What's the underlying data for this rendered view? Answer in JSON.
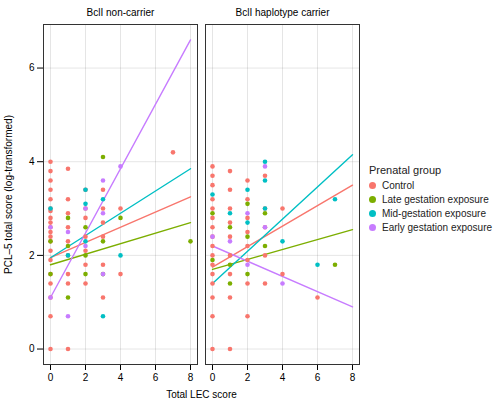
{
  "chart_data": {
    "type": "scatter",
    "x_label": "Total LEC score",
    "y_label": "PCL–5 total score (log-transformed)",
    "legend_title": "Prenatal group",
    "legend": "right",
    "grid": true,
    "xlim": [
      -0.4,
      8.4
    ],
    "ylim": [
      -0.33,
      6.93
    ],
    "xticks": [
      0,
      2,
      4,
      6,
      8
    ],
    "yticks": [
      0,
      2,
      4,
      6
    ],
    "facets": [
      {
        "title": "BclI non-carrier",
        "series": [
          {
            "name": "Control",
            "color": "#F8766D",
            "x": [
              0,
              0,
              0,
              0,
              0,
              0,
              0,
              0,
              0,
              0,
              0,
              0,
              0,
              0,
              0,
              0,
              0,
              0,
              0,
              0,
              1,
              1,
              1,
              1,
              1,
              1,
              1,
              1,
              1,
              2,
              2,
              2,
              2,
              2,
              2,
              2,
              3,
              3,
              3,
              3,
              3,
              3,
              4,
              4,
              7
            ],
            "values": [
              4.0,
              3.8,
              3.6,
              3.4,
              3.2,
              3.0,
              2.95,
              2.8,
              2.7,
              2.6,
              2.5,
              2.4,
              2.3,
              2.1,
              1.9,
              1.6,
              1.4,
              1.1,
              0.7,
              0.0,
              3.85,
              3.2,
              2.9,
              2.6,
              2.3,
              2.0,
              1.6,
              1.4,
              0.0,
              3.4,
              3.0,
              2.8,
              2.4,
              2.1,
              1.8,
              1.4,
              3.4,
              3.0,
              2.7,
              2.4,
              1.8,
              1.1,
              3.0,
              1.6,
              4.2
            ],
            "fit": {
              "x": [
                0,
                8
              ],
              "values": [
                1.95,
                3.25
              ]
            }
          },
          {
            "name": "Late gestation exposure",
            "color": "#7CAE00",
            "x": [
              0,
              0,
              1,
              1,
              1,
              2,
              2,
              2,
              3,
              3,
              3,
              4,
              8
            ],
            "values": [
              2.3,
              1.6,
              2.8,
              2.2,
              1.1,
              2.6,
              2.0,
              1.6,
              4.1,
              2.3,
              1.6,
              2.8,
              2.3
            ],
            "fit": {
              "x": [
                0,
                8
              ],
              "values": [
                1.8,
                2.7
              ]
            }
          },
          {
            "name": "Mid-gestation exposure",
            "color": "#00BFC4",
            "x": [
              0,
              1,
              2,
              2,
              2,
              3,
              3,
              4
            ],
            "values": [
              3.0,
              2.0,
              3.4,
              3.1,
              2.3,
              3.2,
              0.7,
              2.0
            ],
            "fit": {
              "x": [
                0,
                8
              ],
              "values": [
                1.95,
                3.85
              ]
            }
          },
          {
            "name": "Early gestation exposure",
            "color": "#C77CFF",
            "x": [
              0,
              0,
              1,
              1,
              2,
              2,
              3,
              3,
              3,
              4
            ],
            "values": [
              2.6,
              1.1,
              2.5,
              0.7,
              3.0,
              2.2,
              3.6,
              2.9,
              1.6,
              3.9
            ],
            "fit": {
              "x": [
                0,
                8
              ],
              "values": [
                1.1,
                6.6
              ]
            }
          }
        ]
      },
      {
        "title": "BclI haplotype carrier",
        "series": [
          {
            "name": "Control",
            "color": "#F8766D",
            "x": [
              0,
              0,
              0,
              0,
              0,
              0,
              0,
              0,
              0,
              0,
              0,
              0,
              0,
              0,
              0,
              0,
              1,
              1,
              1,
              1,
              1,
              1,
              1,
              1,
              1,
              2,
              2,
              2,
              2,
              2,
              2,
              2,
              2,
              3,
              3,
              3,
              3,
              3,
              4,
              4,
              6
            ],
            "values": [
              3.9,
              3.7,
              3.5,
              3.2,
              3.0,
              2.8,
              2.6,
              2.4,
              2.2,
              2.0,
              1.8,
              1.6,
              1.4,
              1.1,
              0.7,
              0.0,
              3.8,
              3.4,
              3.0,
              2.7,
              2.4,
              2.0,
              1.6,
              1.1,
              0.0,
              3.6,
              3.2,
              2.8,
              2.5,
              2.2,
              1.9,
              1.4,
              0.7,
              3.7,
              3.0,
              2.6,
              2.0,
              1.4,
              3.0,
              1.6,
              1.1
            ],
            "fit": {
              "x": [
                0,
                8
              ],
              "values": [
                1.75,
                3.5
              ]
            }
          },
          {
            "name": "Late gestation exposure",
            "color": "#7CAE00",
            "x": [
              0,
              0,
              1,
              1,
              1,
              2,
              2,
              2,
              3,
              3,
              7
            ],
            "values": [
              2.9,
              1.9,
              2.6,
              1.8,
              1.4,
              3.1,
              2.4,
              1.6,
              2.9,
              2.2,
              1.8
            ],
            "fit": {
              "x": [
                0,
                8
              ],
              "values": [
                1.7,
                2.55
              ]
            }
          },
          {
            "name": "Mid-gestation exposure",
            "color": "#00BFC4",
            "x": [
              0,
              1,
              2,
              2,
              3,
              3,
              3,
              4,
              6,
              7
            ],
            "values": [
              3.3,
              2.9,
              3.4,
              2.7,
              4.0,
              3.6,
              3.0,
              2.3,
              1.8,
              3.2
            ],
            "fit": {
              "x": [
                0,
                8
              ],
              "values": [
                1.4,
                4.15
              ]
            }
          },
          {
            "name": "Early gestation exposure",
            "color": "#C77CFF",
            "x": [
              0,
              1,
              2,
              2,
              3,
              3,
              4
            ],
            "values": [
              2.4,
              2.3,
              2.9,
              1.8,
              3.9,
              2.6,
              1.4
            ],
            "fit": {
              "x": [
                0,
                8
              ],
              "values": [
                2.2,
                0.9
              ]
            }
          }
        ]
      }
    ]
  }
}
